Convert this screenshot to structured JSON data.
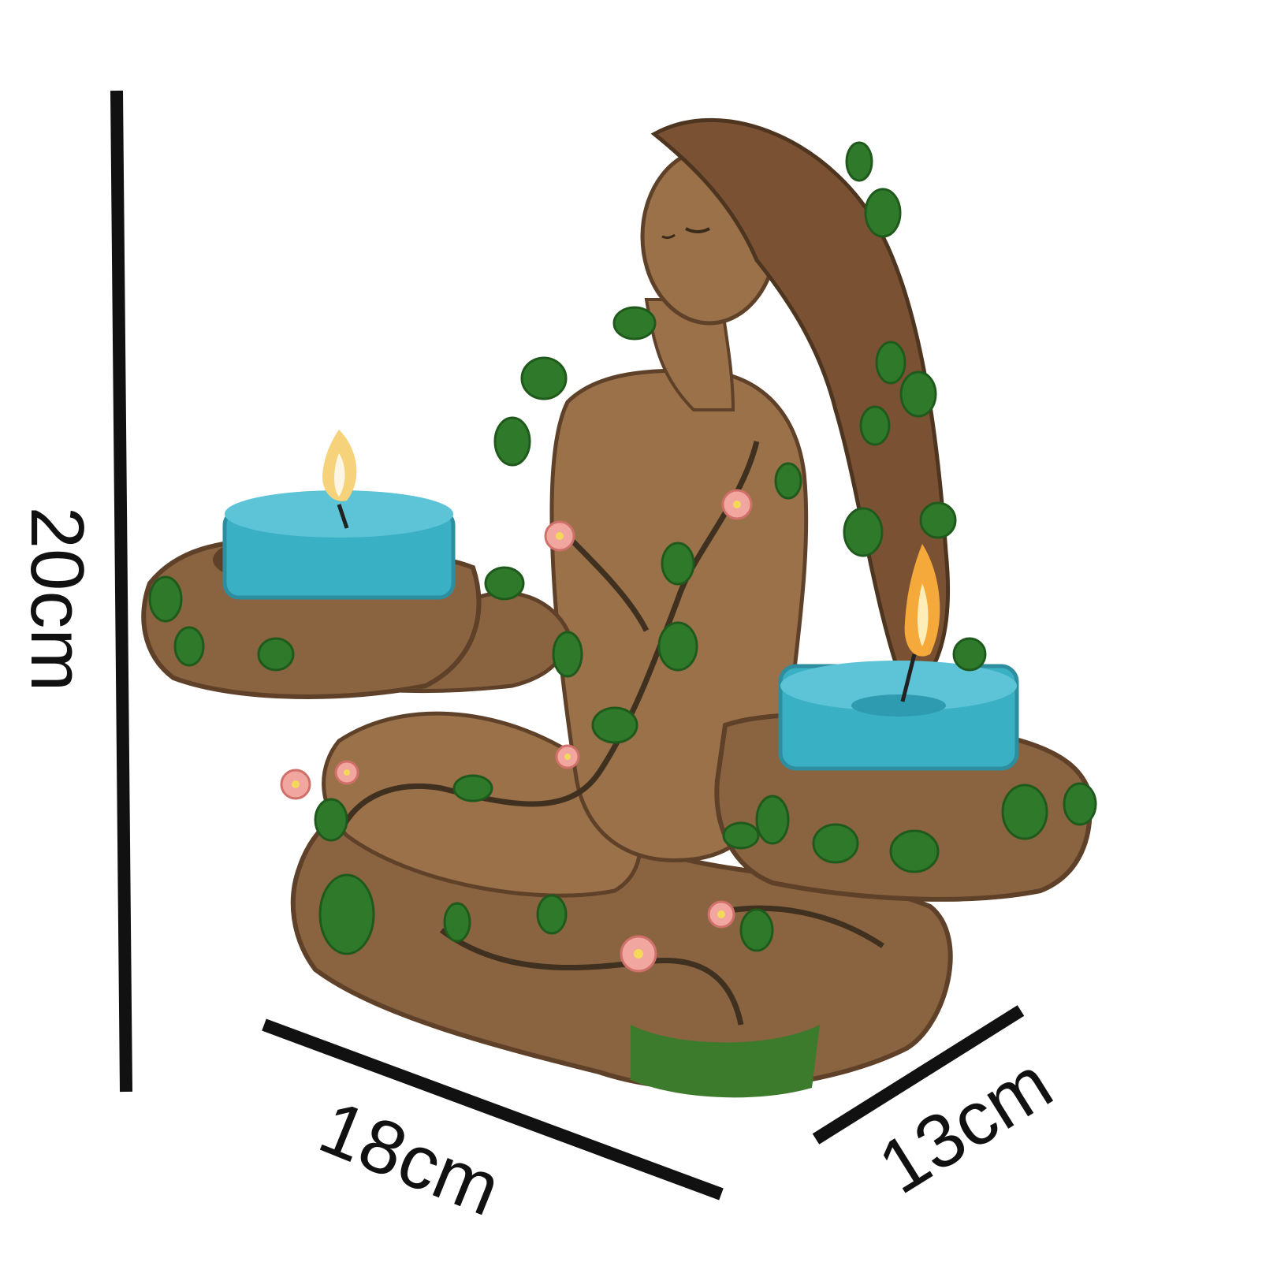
{
  "dimensions": {
    "height": "20cm",
    "width": "18cm",
    "depth": "13cm"
  },
  "colors": {
    "line": "#111111",
    "wood": "#8a6440",
    "wood_dark": "#5e4128",
    "leaf": "#2f7a2a",
    "candle": "#3ab0c4",
    "flower": "#f2a6a0"
  }
}
